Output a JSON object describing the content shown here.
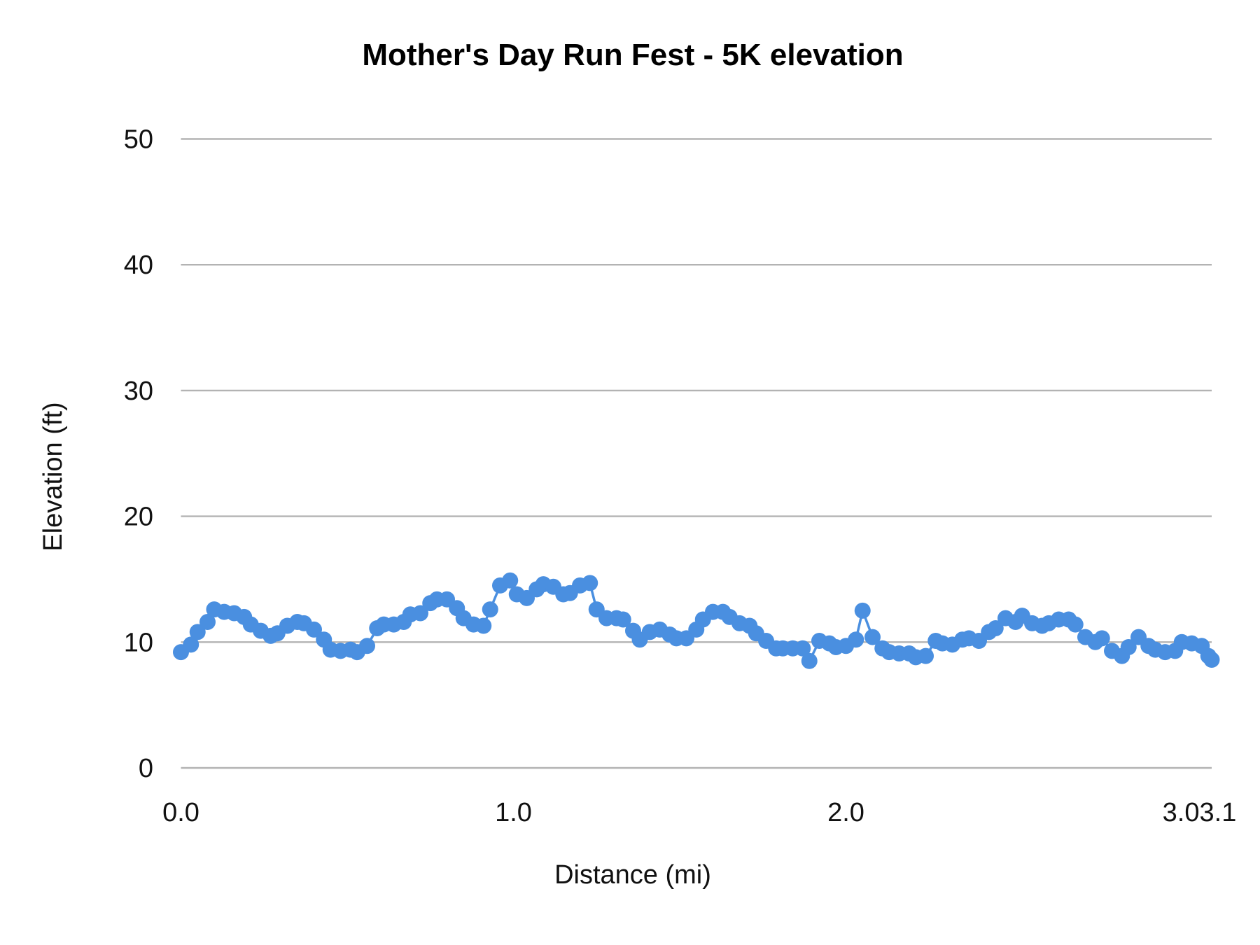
{
  "chart_data": {
    "type": "line",
    "title": "Mother's Day Run Fest - 5K elevation",
    "xlabel": "Distance (mi)",
    "ylabel": "Elevation (ft)",
    "xlim": [
      0,
      3.1
    ],
    "ylim": [
      0,
      50
    ],
    "x_ticks": [
      "0.0",
      "1.0",
      "2.0",
      "3.0",
      "3.1"
    ],
    "x_tick_values": [
      0,
      1,
      2,
      3,
      3.1
    ],
    "y_ticks": [
      "0",
      "10",
      "20",
      "30",
      "40",
      "50"
    ],
    "y_tick_values": [
      0,
      10,
      20,
      30,
      40,
      50
    ],
    "grid": true,
    "legend": "none",
    "markers": true,
    "series_color": "#4a8fe0",
    "grid_color": "#b3b3b3",
    "points": [
      [
        0.0,
        9.2
      ],
      [
        0.03,
        9.8
      ],
      [
        0.05,
        10.8
      ],
      [
        0.08,
        11.6
      ],
      [
        0.1,
        12.6
      ],
      [
        0.13,
        12.4
      ],
      [
        0.16,
        12.3
      ],
      [
        0.19,
        12.0
      ],
      [
        0.21,
        11.4
      ],
      [
        0.24,
        10.9
      ],
      [
        0.27,
        10.5
      ],
      [
        0.29,
        10.7
      ],
      [
        0.32,
        11.3
      ],
      [
        0.35,
        11.6
      ],
      [
        0.37,
        11.5
      ],
      [
        0.4,
        11.0
      ],
      [
        0.43,
        10.2
      ],
      [
        0.45,
        9.4
      ],
      [
        0.48,
        9.3
      ],
      [
        0.51,
        9.4
      ],
      [
        0.53,
        9.2
      ],
      [
        0.56,
        9.7
      ],
      [
        0.59,
        11.1
      ],
      [
        0.61,
        11.4
      ],
      [
        0.64,
        11.4
      ],
      [
        0.67,
        11.6
      ],
      [
        0.69,
        12.2
      ],
      [
        0.72,
        12.3
      ],
      [
        0.75,
        13.1
      ],
      [
        0.77,
        13.4
      ],
      [
        0.8,
        13.4
      ],
      [
        0.83,
        12.7
      ],
      [
        0.85,
        11.9
      ],
      [
        0.88,
        11.4
      ],
      [
        0.91,
        11.3
      ],
      [
        0.93,
        12.6
      ],
      [
        0.96,
        14.5
      ],
      [
        0.99,
        14.9
      ],
      [
        1.01,
        13.8
      ],
      [
        1.04,
        13.5
      ],
      [
        1.07,
        14.2
      ],
      [
        1.09,
        14.6
      ],
      [
        1.12,
        14.4
      ],
      [
        1.15,
        13.8
      ],
      [
        1.17,
        13.9
      ],
      [
        1.2,
        14.5
      ],
      [
        1.23,
        14.7
      ],
      [
        1.25,
        12.6
      ],
      [
        1.28,
        11.9
      ],
      [
        1.31,
        11.9
      ],
      [
        1.33,
        11.8
      ],
      [
        1.36,
        10.9
      ],
      [
        1.38,
        10.2
      ],
      [
        1.41,
        10.8
      ],
      [
        1.44,
        11.0
      ],
      [
        1.47,
        10.6
      ],
      [
        1.49,
        10.3
      ],
      [
        1.52,
        10.3
      ],
      [
        1.55,
        11.0
      ],
      [
        1.57,
        11.8
      ],
      [
        1.6,
        12.4
      ],
      [
        1.63,
        12.4
      ],
      [
        1.65,
        12.0
      ],
      [
        1.68,
        11.5
      ],
      [
        1.71,
        11.3
      ],
      [
        1.73,
        10.7
      ],
      [
        1.76,
        10.1
      ],
      [
        1.79,
        9.5
      ],
      [
        1.81,
        9.5
      ],
      [
        1.84,
        9.5
      ],
      [
        1.87,
        9.5
      ],
      [
        1.89,
        8.5
      ],
      [
        1.92,
        10.1
      ],
      [
        1.95,
        9.9
      ],
      [
        1.97,
        9.6
      ],
      [
        2.0,
        9.7
      ],
      [
        2.03,
        10.2
      ],
      [
        2.05,
        12.5
      ],
      [
        2.08,
        10.4
      ],
      [
        2.11,
        9.5
      ],
      [
        2.13,
        9.2
      ],
      [
        2.16,
        9.1
      ],
      [
        2.19,
        9.1
      ],
      [
        2.21,
        8.8
      ],
      [
        2.24,
        8.9
      ],
      [
        2.27,
        10.1
      ],
      [
        2.29,
        9.9
      ],
      [
        2.32,
        9.8
      ],
      [
        2.35,
        10.2
      ],
      [
        2.37,
        10.3
      ],
      [
        2.4,
        10.1
      ],
      [
        2.43,
        10.8
      ],
      [
        2.45,
        11.1
      ],
      [
        2.48,
        11.9
      ],
      [
        2.51,
        11.6
      ],
      [
        2.53,
        12.1
      ],
      [
        2.56,
        11.5
      ],
      [
        2.59,
        11.3
      ],
      [
        2.61,
        11.5
      ],
      [
        2.64,
        11.8
      ],
      [
        2.67,
        11.8
      ],
      [
        2.69,
        11.4
      ],
      [
        2.72,
        10.4
      ],
      [
        2.75,
        10.0
      ],
      [
        2.77,
        10.3
      ],
      [
        2.8,
        9.3
      ],
      [
        2.83,
        8.9
      ],
      [
        2.85,
        9.6
      ],
      [
        2.88,
        10.4
      ],
      [
        2.91,
        9.7
      ],
      [
        2.93,
        9.4
      ],
      [
        2.96,
        9.2
      ],
      [
        2.99,
        9.3
      ],
      [
        3.01,
        10.0
      ],
      [
        3.04,
        9.9
      ],
      [
        3.07,
        9.7
      ],
      [
        3.09,
        8.9
      ],
      [
        3.1,
        8.6
      ]
    ]
  }
}
